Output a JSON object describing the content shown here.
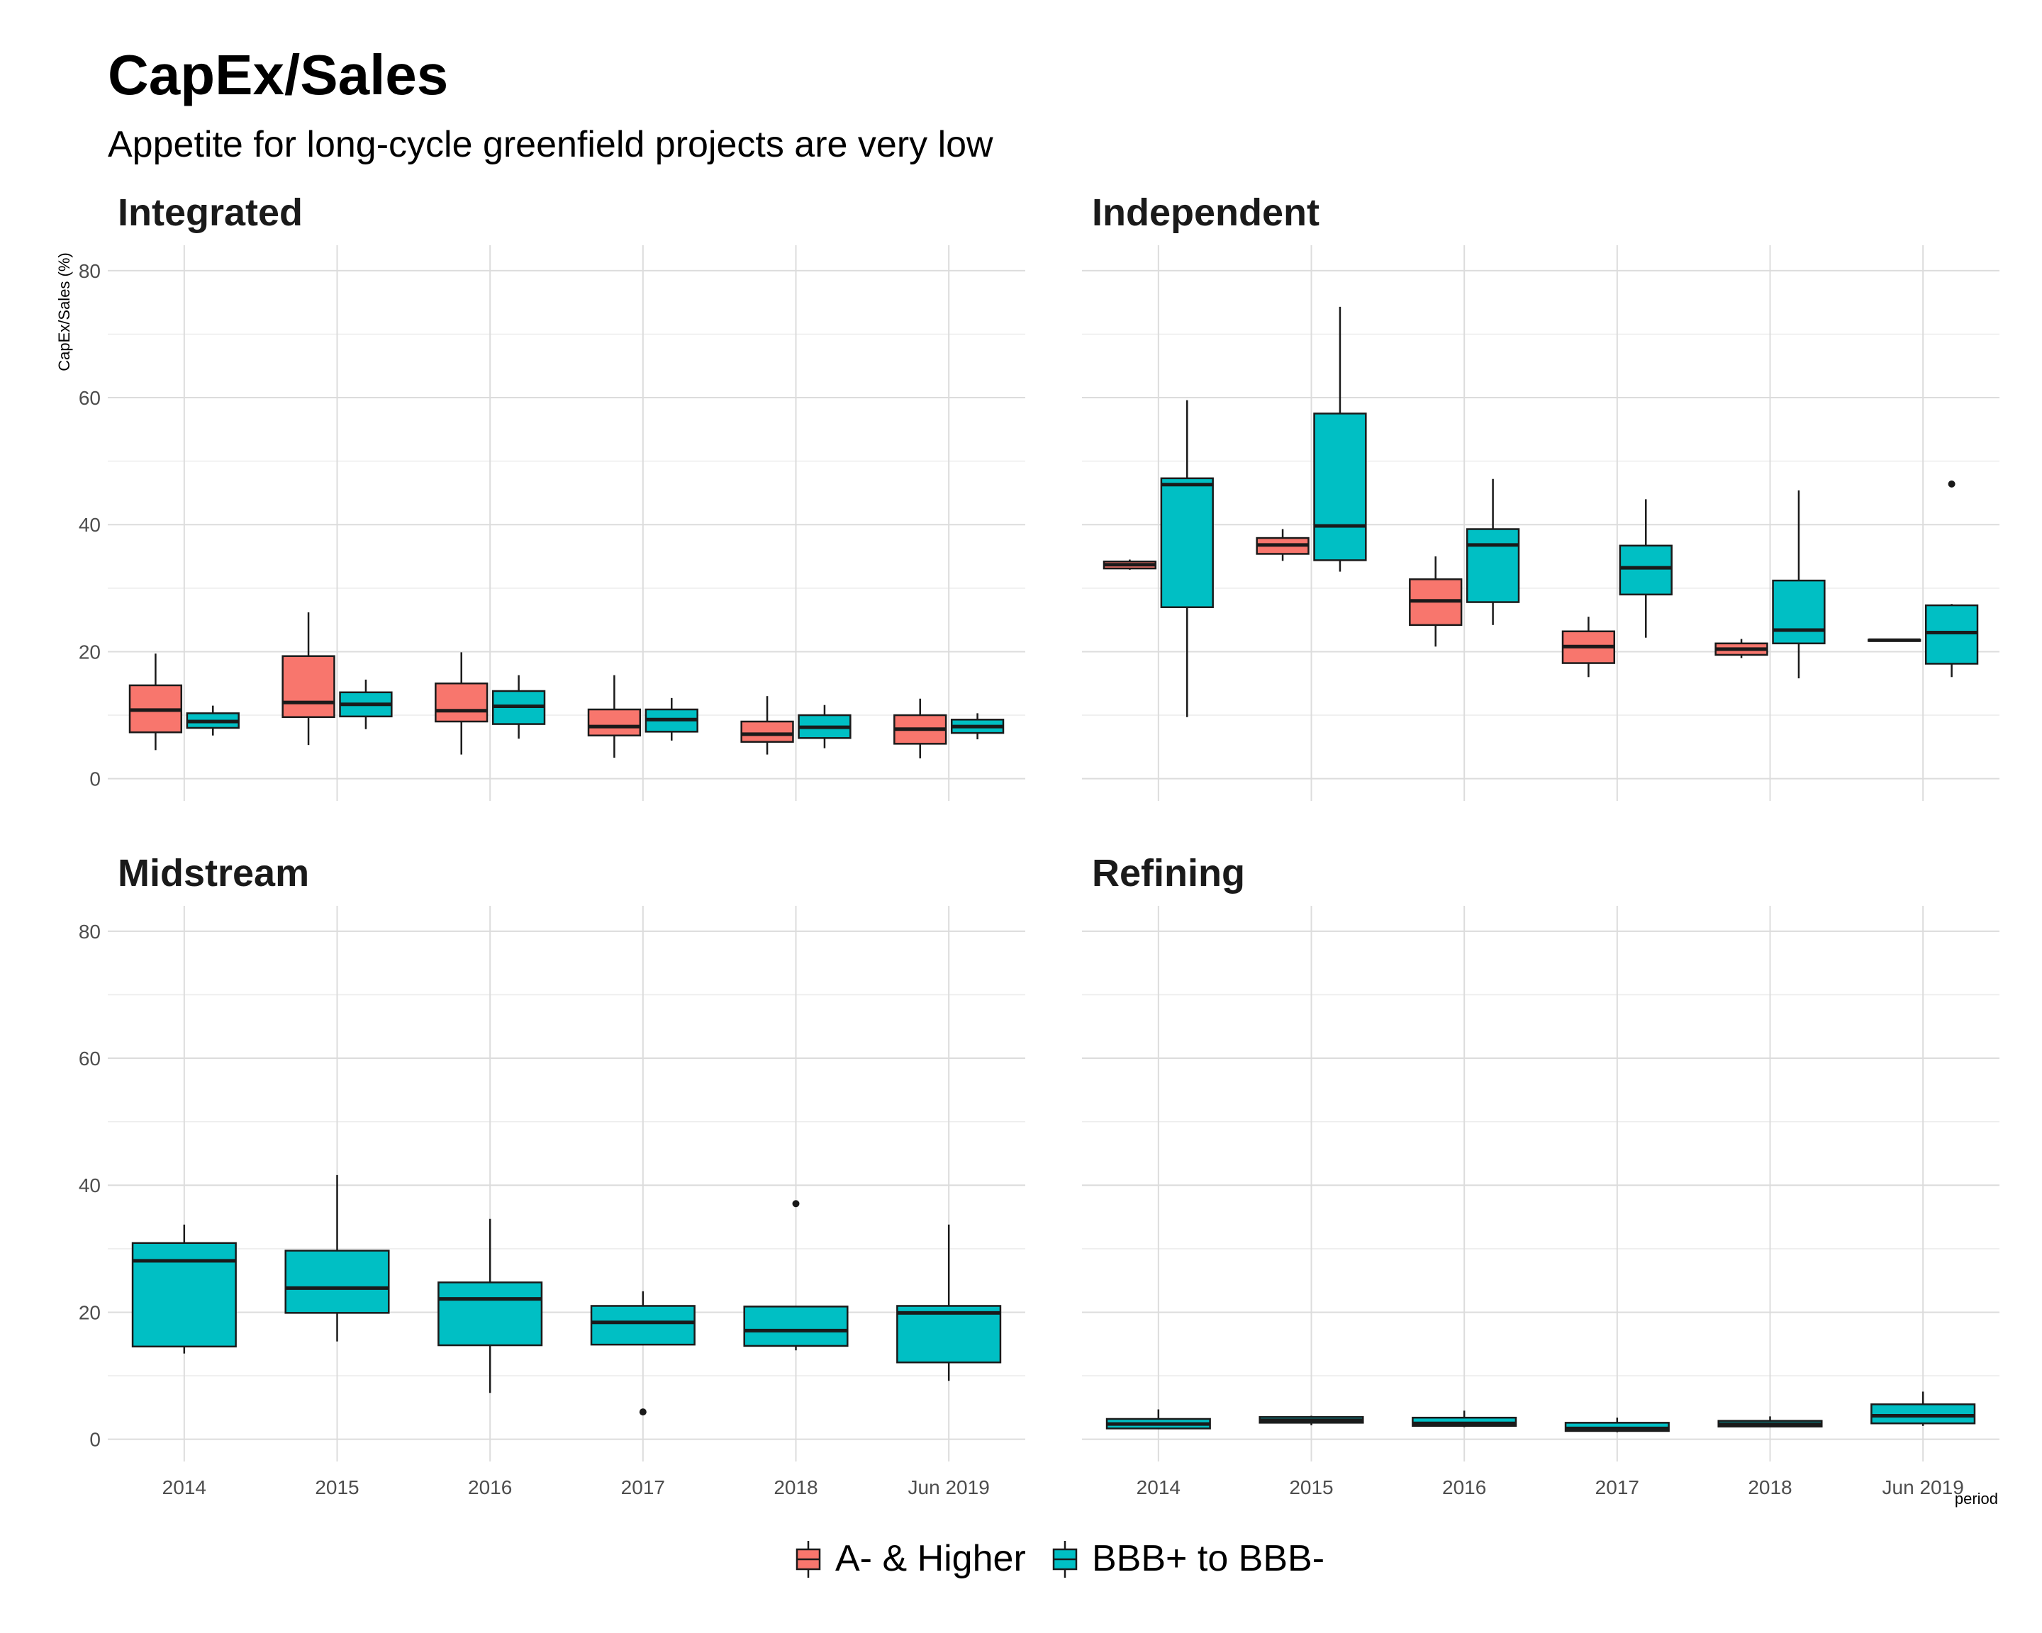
{
  "title": "CapEx/Sales",
  "subtitle": "Appetite for long-cycle greenfield projects are very low",
  "chart_data": {
    "type": "boxplot",
    "ylabel": "CapEx/Sales (%)",
    "xlabel": "period",
    "ylim": [
      -3.5,
      84
    ],
    "yticks": [
      0,
      20,
      40,
      60,
      80
    ],
    "categories": [
      "2014",
      "2015",
      "2016",
      "2017",
      "2018",
      "Jun 2019"
    ],
    "grid": true,
    "legend_position": "bottom",
    "legend": [
      {
        "name": "A- & Higher",
        "color": "#F8766D"
      },
      {
        "name": "BBB+ to BBB-",
        "color": "#00BFC4"
      }
    ],
    "panels": [
      {
        "title": "Integrated",
        "series": [
          {
            "name": "A- & Higher",
            "boxes": [
              {
                "category": "2014",
                "min": 4.5,
                "q1": 7.3,
                "median": 10.8,
                "q3": 14.7,
                "max": 19.7,
                "outliers": []
              },
              {
                "category": "2015",
                "min": 5.3,
                "q1": 9.7,
                "median": 12.0,
                "q3": 19.3,
                "max": 26.2,
                "outliers": []
              },
              {
                "category": "2016",
                "min": 3.8,
                "q1": 9.0,
                "median": 10.7,
                "q3": 15.0,
                "max": 19.9,
                "outliers": []
              },
              {
                "category": "2017",
                "min": 3.3,
                "q1": 6.8,
                "median": 8.2,
                "q3": 10.9,
                "max": 16.3,
                "outliers": []
              },
              {
                "category": "2018",
                "min": 3.8,
                "q1": 5.8,
                "median": 7.0,
                "q3": 9.0,
                "max": 13.0,
                "outliers": []
              },
              {
                "category": "Jun 2019",
                "min": 3.2,
                "q1": 5.5,
                "median": 7.8,
                "q3": 10.0,
                "max": 12.6,
                "outliers": []
              }
            ]
          },
          {
            "name": "BBB+ to BBB-",
            "boxes": [
              {
                "category": "2014",
                "min": 6.8,
                "q1": 8.0,
                "median": 9.0,
                "q3": 10.3,
                "max": 11.5,
                "outliers": []
              },
              {
                "category": "2015",
                "min": 7.8,
                "q1": 9.8,
                "median": 11.7,
                "q3": 13.6,
                "max": 15.6,
                "outliers": []
              },
              {
                "category": "2016",
                "min": 6.3,
                "q1": 8.6,
                "median": 11.4,
                "q3": 13.8,
                "max": 16.3,
                "outliers": []
              },
              {
                "category": "2017",
                "min": 6.0,
                "q1": 7.4,
                "median": 9.3,
                "q3": 10.9,
                "max": 12.7,
                "outliers": []
              },
              {
                "category": "2018",
                "min": 4.8,
                "q1": 6.4,
                "median": 8.1,
                "q3": 10.0,
                "max": 11.6,
                "outliers": []
              },
              {
                "category": "Jun 2019",
                "min": 6.2,
                "q1": 7.2,
                "median": 8.2,
                "q3": 9.3,
                "max": 10.3,
                "outliers": []
              }
            ]
          }
        ]
      },
      {
        "title": "Independent",
        "series": [
          {
            "name": "A- & Higher",
            "boxes": [
              {
                "category": "2014",
                "min": 32.9,
                "q1": 33.1,
                "median": 33.7,
                "q3": 34.2,
                "max": 34.5,
                "outliers": []
              },
              {
                "category": "2015",
                "min": 34.3,
                "q1": 35.4,
                "median": 36.8,
                "q3": 37.9,
                "max": 39.3,
                "outliers": []
              },
              {
                "category": "2016",
                "min": 20.8,
                "q1": 24.2,
                "median": 28.0,
                "q3": 31.4,
                "max": 35.0,
                "outliers": []
              },
              {
                "category": "2017",
                "min": 16.0,
                "q1": 18.2,
                "median": 20.8,
                "q3": 23.2,
                "max": 25.5,
                "outliers": []
              },
              {
                "category": "2018",
                "min": 19.0,
                "q1": 19.5,
                "median": 20.4,
                "q3": 21.3,
                "max": 22.0,
                "outliers": []
              },
              {
                "category": "Jun 2019",
                "min": 21.7,
                "q1": 21.8,
                "median": 21.8,
                "q3": 21.9,
                "max": 21.9,
                "outliers": []
              }
            ]
          },
          {
            "name": "BBB+ to BBB-",
            "boxes": [
              {
                "category": "2014",
                "min": 9.7,
                "q1": 27.0,
                "median": 46.3,
                "q3": 47.3,
                "max": 59.6,
                "outliers": []
              },
              {
                "category": "2015",
                "min": 32.6,
                "q1": 34.4,
                "median": 39.8,
                "q3": 57.5,
                "max": 74.3,
                "outliers": []
              },
              {
                "category": "2016",
                "min": 24.2,
                "q1": 27.8,
                "median": 36.8,
                "q3": 39.3,
                "max": 47.2,
                "outliers": []
              },
              {
                "category": "2017",
                "min": 22.2,
                "q1": 29.0,
                "median": 33.2,
                "q3": 36.7,
                "max": 44.0,
                "outliers": []
              },
              {
                "category": "2018",
                "min": 15.8,
                "q1": 21.3,
                "median": 23.4,
                "q3": 31.2,
                "max": 45.4,
                "outliers": []
              },
              {
                "category": "Jun 2019",
                "min": 16.0,
                "q1": 18.1,
                "median": 23.0,
                "q3": 27.3,
                "max": 27.5,
                "outliers": [
                  46.4
                ]
              }
            ]
          }
        ]
      },
      {
        "title": "Midstream",
        "series": [
          {
            "name": "BBB+ to BBB-",
            "boxes": [
              {
                "category": "2014",
                "min": 13.5,
                "q1": 14.6,
                "median": 28.1,
                "q3": 30.9,
                "max": 33.8,
                "outliers": []
              },
              {
                "category": "2015",
                "min": 15.4,
                "q1": 19.9,
                "median": 23.8,
                "q3": 29.7,
                "max": 41.6,
                "outliers": []
              },
              {
                "category": "2016",
                "min": 7.3,
                "q1": 14.8,
                "median": 22.1,
                "q3": 24.7,
                "max": 34.7,
                "outliers": []
              },
              {
                "category": "2017",
                "min": 14.8,
                "q1": 14.9,
                "median": 18.4,
                "q3": 21.0,
                "max": 23.3,
                "outliers": [
                  4.3
                ]
              },
              {
                "category": "2018",
                "min": 14.0,
                "q1": 14.7,
                "median": 17.1,
                "q3": 20.9,
                "max": 20.9,
                "outliers": [
                  37.1
                ]
              },
              {
                "category": "Jun 2019",
                "min": 9.2,
                "q1": 12.1,
                "median": 19.9,
                "q3": 21.0,
                "max": 33.8,
                "outliers": []
              }
            ]
          }
        ]
      },
      {
        "title": "Refining",
        "series": [
          {
            "name": "BBB+ to BBB-",
            "boxes": [
              {
                "category": "2014",
                "min": 1.6,
                "q1": 1.7,
                "median": 2.4,
                "q3": 3.2,
                "max": 4.7,
                "outliers": []
              },
              {
                "category": "2015",
                "min": 2.2,
                "q1": 2.6,
                "median": 3.0,
                "q3": 3.5,
                "max": 3.7,
                "outliers": []
              },
              {
                "category": "2016",
                "min": 1.9,
                "q1": 2.1,
                "median": 2.5,
                "q3": 3.4,
                "max": 4.5,
                "outliers": []
              },
              {
                "category": "2017",
                "min": 1.1,
                "q1": 1.3,
                "median": 1.7,
                "q3": 2.6,
                "max": 3.4,
                "outliers": []
              },
              {
                "category": "2018",
                "min": 1.9,
                "q1": 2.0,
                "median": 2.4,
                "q3": 2.9,
                "max": 3.6,
                "outliers": []
              },
              {
                "category": "Jun 2019",
                "min": 2.1,
                "q1": 2.5,
                "median": 3.7,
                "q3": 5.5,
                "max": 7.5,
                "outliers": []
              }
            ]
          }
        ]
      }
    ]
  }
}
